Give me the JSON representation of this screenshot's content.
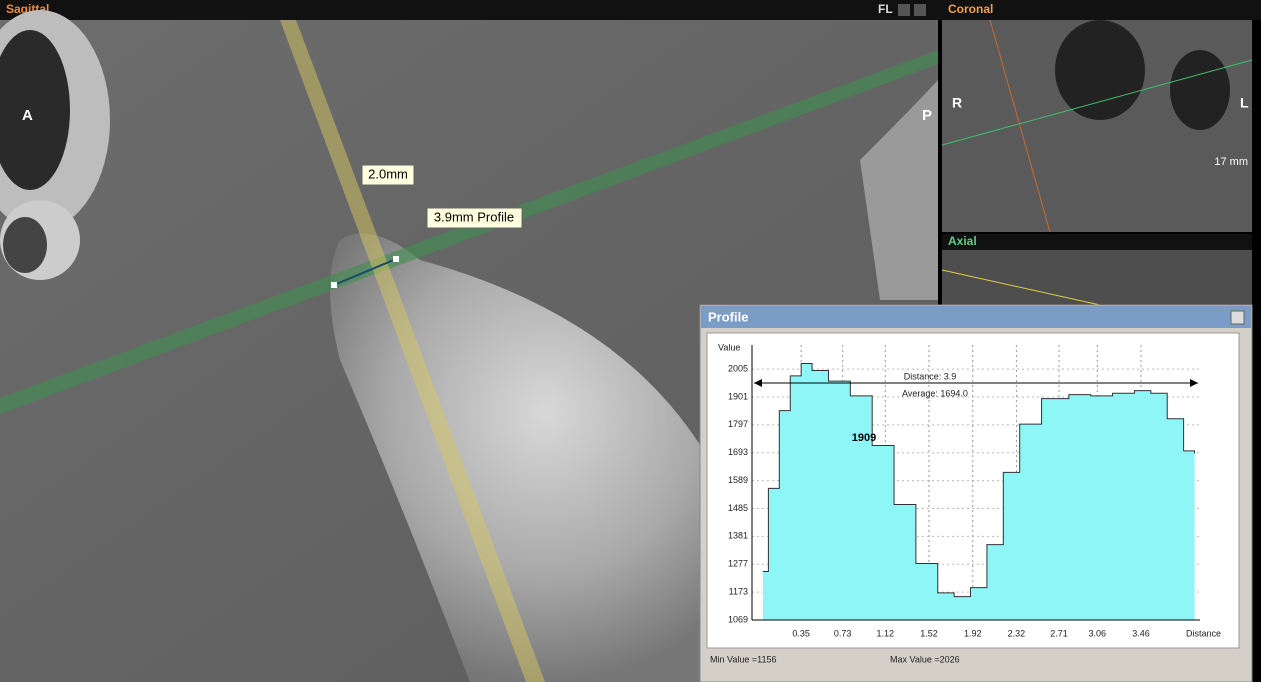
{
  "viewer": {
    "sagittal": {
      "title": "Sagittal",
      "toolbar": "FL",
      "left_marker": "A",
      "right_marker": "P",
      "measure_label": "2.0mm",
      "profile_label": "3.9mm Profile"
    },
    "coronal": {
      "title": "Coronal",
      "left_marker": "R",
      "right_marker": "L",
      "scale_label": "17 mm"
    },
    "axial": {
      "title": "Axial"
    },
    "profile_window": {
      "title": "Profile",
      "min_label": "Min Value =1156",
      "max_label": "Max Value =2026"
    }
  },
  "chart_data": {
    "type": "step-area",
    "y_label": "Value",
    "x_label": "Distance",
    "annotations": [
      "Distance: 3.9",
      "Average: 1694.0",
      "1909"
    ],
    "x": [
      0,
      0.05,
      0.15,
      0.25,
      0.35,
      0.45,
      0.6,
      0.8,
      1.0,
      1.2,
      1.4,
      1.6,
      1.75,
      1.9,
      2.05,
      2.2,
      2.35,
      2.55,
      2.8,
      3.0,
      3.2,
      3.4,
      3.55,
      3.7,
      3.85,
      3.95
    ],
    "series": [
      {
        "color": "#8ef6f6",
        "values": [
          1250,
          1560,
          1850,
          1980,
          2026,
          2000,
          1960,
          1905,
          1720,
          1500,
          1280,
          1170,
          1156,
          1190,
          1350,
          1620,
          1800,
          1895,
          1910,
          1905,
          1915,
          1925,
          1915,
          1820,
          1700,
          1690
        ]
      }
    ],
    "xlim": [
      -0.1,
      4.0
    ],
    "ylim": [
      1069,
      2095
    ],
    "xticks": [
      0.35,
      0.73,
      1.12,
      1.52,
      1.92,
      2.32,
      2.71,
      3.06,
      3.46
    ],
    "yticks": [
      1069,
      1173,
      1277,
      1381,
      1485,
      1589,
      1693,
      1797,
      1901,
      2005
    ],
    "grid": true
  }
}
